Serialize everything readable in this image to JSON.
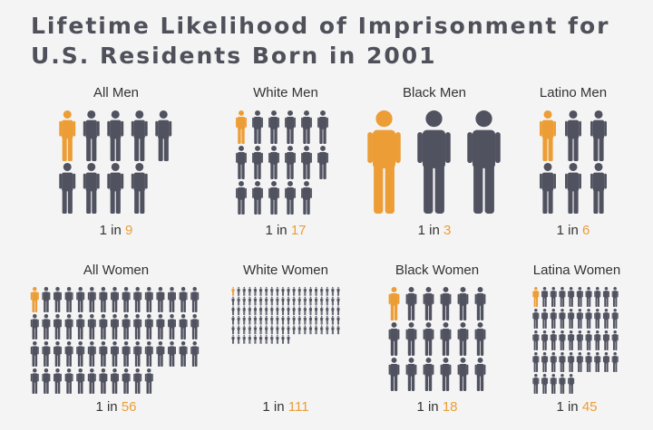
{
  "title": {
    "line1": "Lifetime Likelihood of Imprisonment for",
    "line2": "U.S. Residents Born in 2001"
  },
  "colors": {
    "highlight": "#ec9d36",
    "person": "#505260",
    "title": "#4f505a",
    "background": "#f4f4f4"
  },
  "icon": "person-icon",
  "chart_data": {
    "type": "pictograph",
    "title": "Lifetime Likelihood of Imprisonment for U.S. Residents Born in 2001",
    "unit": "1 in N",
    "groups": [
      {
        "label": "All Men",
        "prefix": "1 in",
        "value": 9
      },
      {
        "label": "White Men",
        "prefix": "1 in",
        "value": 17
      },
      {
        "label": "Black Men",
        "prefix": "1 in",
        "value": 3
      },
      {
        "label": "Latino Men",
        "prefix": "1 in",
        "value": 6
      },
      {
        "label": "All Women",
        "prefix": "1 in",
        "value": 56
      },
      {
        "label": "White Women",
        "prefix": "1 in",
        "value": 111
      },
      {
        "label": "Black Women",
        "prefix": "1 in",
        "value": 18
      },
      {
        "label": "Latina Women",
        "prefix": "1 in",
        "value": 45
      }
    ]
  }
}
